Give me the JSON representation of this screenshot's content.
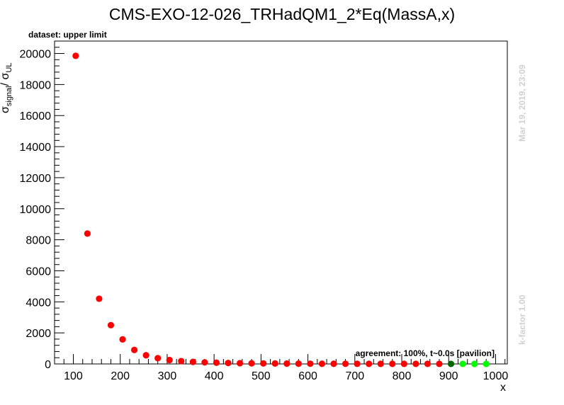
{
  "chart_data": {
    "type": "scatter",
    "title": "CMS-EXO-12-026_TRHadQM1_2*Eq(MassA,x)",
    "xlabel": "x",
    "ylabel_main": "σ",
    "ylabel_sub1": "signal",
    "ylabel_mid": "/ σ",
    "ylabel_sub2": "UL",
    "xlim": [
      60,
      1025
    ],
    "ylim": [
      0,
      20800
    ],
    "x_ticks": [
      100,
      200,
      300,
      400,
      500,
      600,
      700,
      800,
      900,
      1000
    ],
    "x_tick_labels": [
      "100",
      "200",
      "300",
      "400",
      "500",
      "600",
      "700",
      "800",
      "900",
      "1000"
    ],
    "y_ticks": [
      0,
      2000,
      4000,
      6000,
      8000,
      10000,
      12000,
      14000,
      16000,
      18000,
      20000
    ],
    "y_tick_labels": [
      "0",
      "2000",
      "4000",
      "6000",
      "8000",
      "10000",
      "12000",
      "14000",
      "16000",
      "18000",
      "20000"
    ],
    "dataset_label": "dataset: upper limit",
    "agreement_label": "agreement: 100%, t~0.0s [pavilion]",
    "timestamp": "Mar 19, 2019, 23:09",
    "kfactor": "k-factor 1.00",
    "colors": {
      "red": "#ff0000",
      "darkgreen": "#006400",
      "green": "#00ff00"
    },
    "points": [
      {
        "x": 105,
        "y": 19850,
        "c": "red"
      },
      {
        "x": 130,
        "y": 8400,
        "c": "red"
      },
      {
        "x": 155,
        "y": 4200,
        "c": "red"
      },
      {
        "x": 180,
        "y": 2500,
        "c": "red"
      },
      {
        "x": 205,
        "y": 1580,
        "c": "red"
      },
      {
        "x": 230,
        "y": 900,
        "c": "red"
      },
      {
        "x": 255,
        "y": 560,
        "c": "red"
      },
      {
        "x": 280,
        "y": 370,
        "c": "red"
      },
      {
        "x": 305,
        "y": 250,
        "c": "red"
      },
      {
        "x": 330,
        "y": 180,
        "c": "red"
      },
      {
        "x": 355,
        "y": 130,
        "c": "red"
      },
      {
        "x": 380,
        "y": 100,
        "c": "red"
      },
      {
        "x": 405,
        "y": 80,
        "c": "red"
      },
      {
        "x": 430,
        "y": 60,
        "c": "red"
      },
      {
        "x": 455,
        "y": 48,
        "c": "red"
      },
      {
        "x": 480,
        "y": 40,
        "c": "red"
      },
      {
        "x": 505,
        "y": 32,
        "c": "red"
      },
      {
        "x": 530,
        "y": 27,
        "c": "red"
      },
      {
        "x": 555,
        "y": 22,
        "c": "red"
      },
      {
        "x": 580,
        "y": 18,
        "c": "red"
      },
      {
        "x": 605,
        "y": 15,
        "c": "red"
      },
      {
        "x": 630,
        "y": 12,
        "c": "red"
      },
      {
        "x": 655,
        "y": 10,
        "c": "red"
      },
      {
        "x": 680,
        "y": 9,
        "c": "red"
      },
      {
        "x": 705,
        "y": 8,
        "c": "red"
      },
      {
        "x": 730,
        "y": 7,
        "c": "red"
      },
      {
        "x": 755,
        "y": 6,
        "c": "red"
      },
      {
        "x": 780,
        "y": 5,
        "c": "red"
      },
      {
        "x": 805,
        "y": 5,
        "c": "red"
      },
      {
        "x": 830,
        "y": 4,
        "c": "red"
      },
      {
        "x": 855,
        "y": 4,
        "c": "red"
      },
      {
        "x": 880,
        "y": 3,
        "c": "red"
      },
      {
        "x": 905,
        "y": 3,
        "c": "darkgreen"
      },
      {
        "x": 930,
        "y": 3,
        "c": "green"
      },
      {
        "x": 955,
        "y": 2,
        "c": "green"
      },
      {
        "x": 980,
        "y": 2,
        "c": "green"
      }
    ]
  }
}
